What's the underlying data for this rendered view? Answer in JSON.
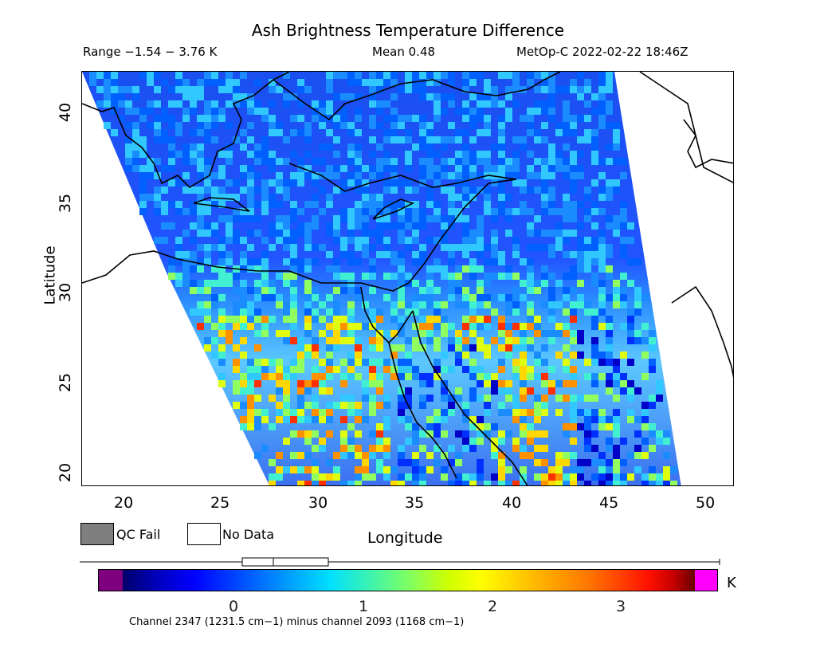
{
  "title": "Ash Brightness Temperature Difference",
  "header": {
    "range": "Range −1.54 − 3.76 K",
    "mean": "Mean 0.48",
    "satellite": "MetOp-C 2022-02-22 18:46Z"
  },
  "axes": {
    "ylabel": "Latitude",
    "xlabel": "Longitude",
    "y_ticks": [
      "20",
      "25",
      "30",
      "35",
      "40"
    ],
    "x_ticks": [
      "20",
      "25",
      "30",
      "35",
      "40",
      "45",
      "50"
    ],
    "lon_range": [
      17.9,
      51.5
    ],
    "lat_range": [
      19.8,
      43.0
    ]
  },
  "legend": {
    "qc_fail": "QC Fail",
    "no_data": "No Data",
    "qc_color": "#7f7f7f"
  },
  "colorbar": {
    "ticks": [
      "0",
      "1",
      "2",
      "3"
    ],
    "unit": "K",
    "channel_note": "Channel 2347 (1231.5 cm−1) minus channel 2093 (1168 cm−1)"
  }
}
